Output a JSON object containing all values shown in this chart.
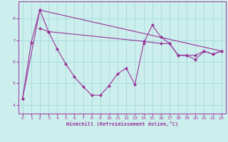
{
  "xlabel": "Windchill (Refroidissement éolien,°C)",
  "background_color": "#cceeed",
  "grid_color": "#aadddd",
  "line_color": "#993399",
  "spine_color": "#993399",
  "xlim": [
    -0.5,
    23.5
  ],
  "ylim": [
    3.6,
    8.8
  ],
  "yticks": [
    4,
    5,
    6,
    7,
    8
  ],
  "xticks": [
    0,
    1,
    2,
    3,
    4,
    5,
    6,
    7,
    8,
    9,
    10,
    11,
    12,
    13,
    14,
    15,
    16,
    17,
    18,
    19,
    20,
    21,
    22,
    23
  ],
  "series1_x": [
    0,
    1,
    2,
    3,
    4,
    5,
    6,
    7,
    8,
    9,
    10,
    11,
    12,
    13,
    14,
    15,
    16,
    17,
    18,
    19,
    20,
    21,
    22,
    23
  ],
  "series1_y": [
    4.3,
    6.9,
    8.4,
    7.4,
    6.6,
    5.9,
    5.3,
    4.85,
    4.45,
    4.45,
    4.9,
    5.45,
    5.7,
    4.95,
    6.85,
    7.7,
    7.15,
    6.85,
    6.3,
    6.3,
    6.1,
    6.5,
    6.35,
    6.5
  ],
  "series2_x": [
    0,
    2,
    23
  ],
  "series2_y": [
    4.3,
    8.4,
    6.5
  ],
  "series3_x": [
    2,
    3,
    14,
    16,
    17,
    18,
    19,
    20,
    21,
    22,
    23
  ],
  "series3_y": [
    7.55,
    7.4,
    6.95,
    6.85,
    6.85,
    6.3,
    6.3,
    6.3,
    6.5,
    6.35,
    6.5
  ]
}
